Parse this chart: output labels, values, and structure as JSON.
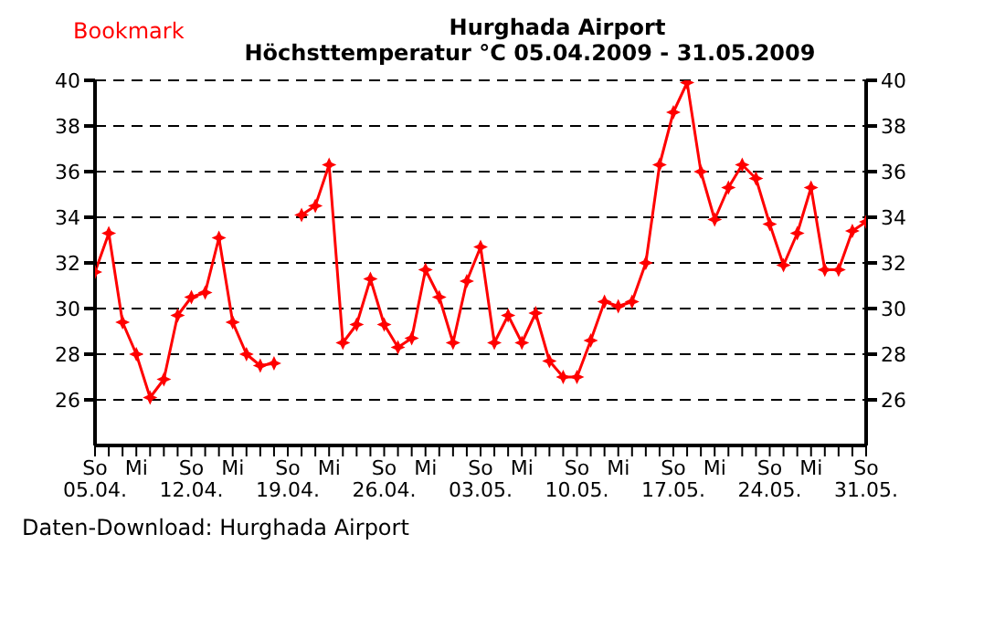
{
  "chart_data": {
    "type": "line",
    "title": "Hurghada Airport",
    "subtitle": "Höchsttemperatur °C 05.04.2009 - 31.05.2009",
    "annotations": [
      "Bookmark",
      "Daten-Download: Hurghada Airport"
    ],
    "x": [
      "2009-04-05",
      "2009-04-06",
      "2009-04-07",
      "2009-04-08",
      "2009-04-09",
      "2009-04-10",
      "2009-04-11",
      "2009-04-12",
      "2009-04-13",
      "2009-04-14",
      "2009-04-15",
      "2009-04-16",
      "2009-04-17",
      "2009-04-18",
      "2009-04-19",
      "2009-04-20",
      "2009-04-21",
      "2009-04-22",
      "2009-04-23",
      "2009-04-24",
      "2009-04-25",
      "2009-04-26",
      "2009-04-27",
      "2009-04-28",
      "2009-04-29",
      "2009-04-30",
      "2009-05-01",
      "2009-05-02",
      "2009-05-03",
      "2009-05-04",
      "2009-05-05",
      "2009-05-06",
      "2009-05-07",
      "2009-05-08",
      "2009-05-09",
      "2009-05-10",
      "2009-05-11",
      "2009-05-12",
      "2009-05-13",
      "2009-05-14",
      "2009-05-15",
      "2009-05-16",
      "2009-05-17",
      "2009-05-18",
      "2009-05-19",
      "2009-05-20",
      "2009-05-21",
      "2009-05-22",
      "2009-05-23",
      "2009-05-24",
      "2009-05-25",
      "2009-05-26",
      "2009-05-27",
      "2009-05-28",
      "2009-05-29",
      "2009-05-30",
      "2009-05-31"
    ],
    "series": [
      {
        "color": "#ff0000",
        "values": [
          31.6,
          33.3,
          29.4,
          28.0,
          26.1,
          26.9,
          29.7,
          30.5,
          30.7,
          33.1,
          29.4,
          28.0,
          27.5,
          27.6,
          null,
          34.1,
          34.5,
          36.3,
          28.5,
          29.3,
          31.3,
          29.3,
          28.3,
          28.7,
          31.7,
          30.5,
          28.5,
          31.2,
          32.7,
          28.5,
          29.7,
          28.5,
          29.8,
          27.7,
          27.0,
          27.0,
          28.6,
          30.3,
          30.1,
          30.3,
          32.0,
          36.3,
          38.6,
          39.9,
          36.0,
          33.9,
          35.3,
          36.3,
          35.7,
          33.7,
          31.9,
          33.3,
          35.3,
          31.7,
          31.7,
          33.4,
          33.8
        ]
      }
    ],
    "xlim": [
      "2009-04-05",
      "2009-05-31"
    ],
    "xticks": [
      {
        "value": "2009-04-05",
        "label": "So 05.04."
      },
      {
        "value": "2009-04-06",
        "label": null
      },
      {
        "value": "2009-04-07",
        "label": null
      },
      {
        "value": "2009-04-08",
        "label": "Mi"
      },
      {
        "value": "2009-04-09",
        "label": null
      },
      {
        "value": "2009-04-10",
        "label": null
      },
      {
        "value": "2009-04-11",
        "label": null
      },
      {
        "value": "2009-04-12",
        "label": "So 12.04."
      },
      {
        "value": "2009-04-13",
        "label": null
      },
      {
        "value": "2009-04-14",
        "label": null
      },
      {
        "value": "2009-04-15",
        "label": "Mi"
      },
      {
        "value": "2009-04-16",
        "label": null
      },
      {
        "value": "2009-04-17",
        "label": null
      },
      {
        "value": "2009-04-18",
        "label": null
      },
      {
        "value": "2009-04-19",
        "label": "So 19.04."
      },
      {
        "value": "2009-04-20",
        "label": null
      },
      {
        "value": "2009-04-21",
        "label": null
      },
      {
        "value": "2009-04-22",
        "label": "Mi"
      },
      {
        "value": "2009-04-23",
        "label": null
      },
      {
        "value": "2009-04-24",
        "label": null
      },
      {
        "value": "2009-04-25",
        "label": null
      },
      {
        "value": "2009-04-26",
        "label": "So 26.04."
      },
      {
        "value": "2009-04-27",
        "label": null
      },
      {
        "value": "2009-04-28",
        "label": null
      },
      {
        "value": "2009-04-29",
        "label": "Mi"
      },
      {
        "value": "2009-04-30",
        "label": null
      },
      {
        "value": "2009-05-01",
        "label": null
      },
      {
        "value": "2009-05-02",
        "label": null
      },
      {
        "value": "2009-05-03",
        "label": "So 03.05."
      },
      {
        "value": "2009-05-04",
        "label": null
      },
      {
        "value": "2009-05-05",
        "label": null
      },
      {
        "value": "2009-05-06",
        "label": "Mi"
      },
      {
        "value": "2009-05-07",
        "label": null
      },
      {
        "value": "2009-05-08",
        "label": null
      },
      {
        "value": "2009-05-09",
        "label": null
      },
      {
        "value": "2009-05-10",
        "label": "So 10.05."
      },
      {
        "value": "2009-05-11",
        "label": null
      },
      {
        "value": "2009-05-12",
        "label": null
      },
      {
        "value": "2009-05-13",
        "label": "Mi"
      },
      {
        "value": "2009-05-14",
        "label": null
      },
      {
        "value": "2009-05-15",
        "label": null
      },
      {
        "value": "2009-05-16",
        "label": null
      },
      {
        "value": "2009-05-17",
        "label": "So 17.05."
      },
      {
        "value": "2009-05-18",
        "label": null
      },
      {
        "value": "2009-05-19",
        "label": null
      },
      {
        "value": "2009-05-20",
        "label": "Mi"
      },
      {
        "value": "2009-05-21",
        "label": null
      },
      {
        "value": "2009-05-22",
        "label": null
      },
      {
        "value": "2009-05-23",
        "label": null
      },
      {
        "value": "2009-05-24",
        "label": "So 24.05."
      },
      {
        "value": "2009-05-25",
        "label": null
      },
      {
        "value": "2009-05-26",
        "label": null
      },
      {
        "value": "2009-05-27",
        "label": "Mi"
      },
      {
        "value": "2009-05-28",
        "label": null
      },
      {
        "value": "2009-05-29",
        "label": null
      },
      {
        "value": "2009-05-30",
        "label": null
      },
      {
        "value": "2009-05-31",
        "label": "So 31.05."
      }
    ],
    "ylim": [
      24,
      40
    ],
    "yticks": [
      26,
      28,
      30,
      32,
      34,
      36,
      38,
      40
    ],
    "y2lim": [
      24,
      40
    ],
    "y2ticks": [
      26,
      28,
      30,
      32,
      34,
      36,
      38,
      40
    ],
    "grid": "y",
    "marker": "star",
    "line_style": "solid"
  }
}
